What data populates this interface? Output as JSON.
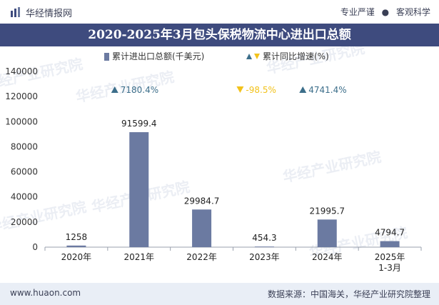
{
  "header": {
    "brand": "华经情报网",
    "tag_left": "专业严谨",
    "tag_sep": "●",
    "tag_right": "客观科学"
  },
  "footer": {
    "website": "www.huaon.com",
    "source": "数据来源：中国海关，华经产业研究院整理"
  },
  "colors": {
    "title_bg": "#3e4b7e",
    "bar": "#6b7aa1",
    "up": "#3c6e8a",
    "down": "#f2c21b",
    "footer_bg": "#e9eef6"
  },
  "chart_data": {
    "type": "bar",
    "title": "2020-2025年3月包头保税物流中心进出口总额",
    "categories": [
      "2020年",
      "2021年",
      "2022年",
      "2023年",
      "2024年",
      "2025年\n1-3月"
    ],
    "series": [
      {
        "name": "累计进出口总额(千美元)",
        "values": [
          1258,
          91599.4,
          29984.7,
          454.3,
          21995.7,
          4794.7
        ]
      }
    ],
    "value_labels": [
      "1258",
      "91599.4",
      "29984.7",
      "454.3",
      "21995.7",
      "4794.7"
    ],
    "growth": {
      "name": "累计同比增速(%)",
      "entries": [
        {
          "category_index": 1,
          "label": "7180.4%",
          "direction": "up"
        },
        {
          "category_index": 3,
          "label": "-98.5%",
          "direction": "down"
        },
        {
          "category_index": 4,
          "label": "4741.4%",
          "direction": "up"
        }
      ]
    },
    "ylim": [
      0,
      140000
    ],
    "yticks": [
      0,
      20000,
      40000,
      60000,
      80000,
      100000,
      120000,
      140000
    ],
    "xlabel": "",
    "ylabel": "",
    "legend_position": "top-center",
    "watermark": "华经产业研究院"
  }
}
